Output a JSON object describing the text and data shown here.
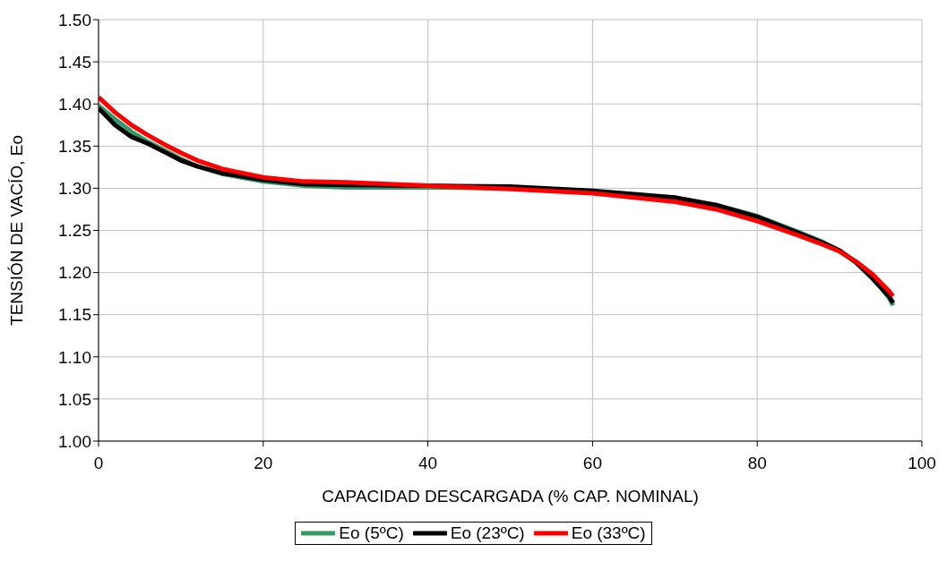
{
  "chart_data": {
    "type": "line",
    "xlabel": "CAPACIDAD DESCARGADA (% CAP. NOMINAL)",
    "ylabel": "TENSIÓN DE VACÍO, Eo",
    "xlim": [
      0,
      100
    ],
    "xticks": [
      0,
      20,
      40,
      60,
      80,
      100
    ],
    "ylim": [
      1.0,
      1.5
    ],
    "yticks": [
      {
        "value": 1.0,
        "label": "1.00"
      },
      {
        "value": 1.05,
        "label": "1.05"
      },
      {
        "value": 1.1,
        "label": "1.10"
      },
      {
        "value": 1.15,
        "label": "1.15"
      },
      {
        "value": 1.2,
        "label": "1.20"
      },
      {
        "value": 1.25,
        "label": "1.25"
      },
      {
        "value": 1.3,
        "label": "1.30"
      },
      {
        "value": 1.35,
        "label": "1.35"
      },
      {
        "value": 1.4,
        "label": "1.40"
      },
      {
        "value": 1.45,
        "label": "1.45"
      },
      {
        "value": 1.5,
        "label": "1.50"
      }
    ],
    "grid": true,
    "legend": "bottom",
    "marker": "none",
    "line_style": "solid",
    "x": [
      0,
      2,
      4,
      6,
      8,
      10,
      12,
      15,
      20,
      25,
      30,
      40,
      50,
      60,
      70,
      75,
      80,
      85,
      88,
      90,
      92,
      94,
      96,
      96.5
    ],
    "series": [
      {
        "name": "Eo (5ºC)",
        "color": "#339966",
        "values": [
          1.398,
          1.382,
          1.367,
          1.355,
          1.345,
          1.335,
          1.326,
          1.317,
          1.308,
          1.303,
          1.301,
          1.301,
          1.3,
          1.296,
          1.288,
          1.28,
          1.267,
          1.248,
          1.236,
          1.226,
          1.212,
          1.195,
          1.17,
          1.161
        ]
      },
      {
        "name": "Eo (23ºC)",
        "color": "#000000",
        "values": [
          1.395,
          1.375,
          1.361,
          1.353,
          1.343,
          1.333,
          1.326,
          1.318,
          1.31,
          1.305,
          1.304,
          1.303,
          1.302,
          1.297,
          1.289,
          1.28,
          1.266,
          1.247,
          1.235,
          1.226,
          1.212,
          1.193,
          1.172,
          1.164
        ]
      },
      {
        "name": "Eo (33ºC)",
        "color": "#ff0000",
        "values": [
          1.408,
          1.39,
          1.375,
          1.363,
          1.352,
          1.342,
          1.333,
          1.323,
          1.313,
          1.308,
          1.307,
          1.303,
          1.299,
          1.294,
          1.284,
          1.275,
          1.261,
          1.244,
          1.233,
          1.225,
          1.213,
          1.198,
          1.178,
          1.172
        ]
      }
    ]
  }
}
